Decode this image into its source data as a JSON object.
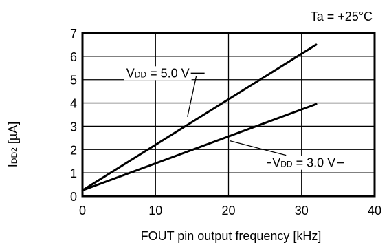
{
  "chart_data": {
    "type": "line",
    "title": "",
    "condition_label": "Ta = +25°C",
    "xlabel": "FOUT pin output frequency [kHz]",
    "ylabel": {
      "main": "I",
      "sub": "DD2",
      "unit": " [µA]"
    },
    "xlim": [
      0,
      40
    ],
    "ylim": [
      0,
      7
    ],
    "xticks": [
      "0",
      "10",
      "20",
      "30",
      "40"
    ],
    "yticks": [
      "0",
      "1",
      "2",
      "3",
      "4",
      "5",
      "6",
      "7"
    ],
    "grid": true,
    "line_color": "#000000",
    "series": [
      {
        "label_main": "V",
        "label_sub": "DD",
        "label_rest": " = 5.0 V",
        "x": [
          0,
          32
        ],
        "y": [
          0.25,
          6.5
        ],
        "label_at": [
          6,
          5.1
        ]
      },
      {
        "label_main": "V",
        "label_sub": "DD",
        "label_rest": " = 3.0 V",
        "x": [
          0,
          32
        ],
        "y": [
          0.25,
          3.95
        ],
        "label_at": [
          26,
          1.25
        ]
      }
    ]
  }
}
